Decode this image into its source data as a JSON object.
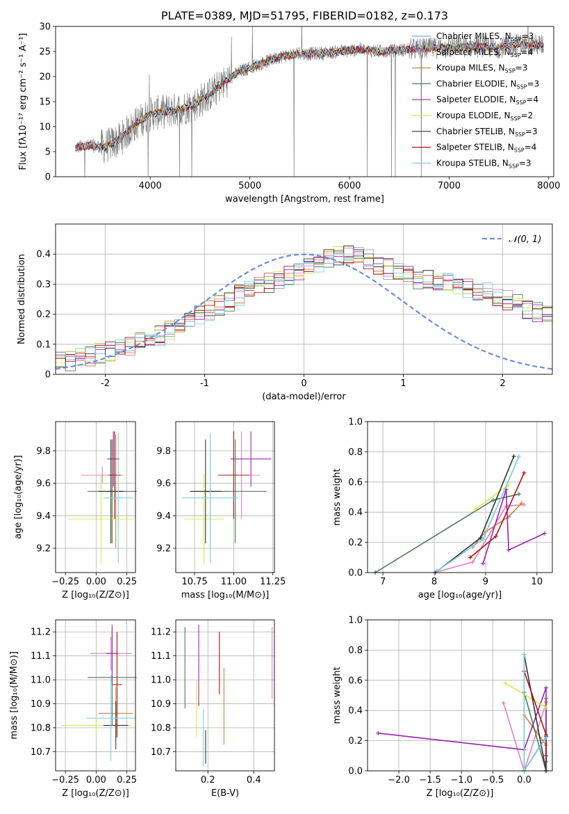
{
  "chart_data": [
    {
      "type": "line",
      "title": "PLATE=0389, MJD=51795, FIBERID=0182, z=0.173",
      "xlabel": "wavelength [Angstrom, rest frame]",
      "ylabel": "Flux [fλ10⁻¹⁷ erg cm⁻² s⁻¹ A⁻¹]",
      "xlim": [
        3050,
        8050
      ],
      "ylim": [
        0,
        30
      ],
      "xticks": [
        4000,
        5000,
        6000,
        7000,
        8000
      ],
      "yticks": [
        0,
        5,
        10,
        15,
        20,
        25,
        30
      ],
      "grid": false,
      "legend_position": "top-right",
      "legend": [
        {
          "label": "Chabrier MILES, N",
          "sub": "SSP",
          "suffix": "=3",
          "color": "#77aadd"
        },
        {
          "label": "Salpeter MILES, N",
          "sub": "SSP",
          "suffix": "=4",
          "color": "#e07fc0"
        },
        {
          "label": "Kroupa MILES, N",
          "sub": "SSP",
          "suffix": "=3",
          "color": "#d08040"
        },
        {
          "label": "Chabrier ELODIE, N",
          "sub": "SSP",
          "suffix": "=3",
          "color": "#4a7a55"
        },
        {
          "label": "Salpeter ELODIE, N",
          "sub": "SSP",
          "suffix": "=4",
          "color": "#9a22b0"
        },
        {
          "label": "Kroupa ELODIE, N",
          "sub": "SSP",
          "suffix": "=2",
          "color": "#d8e84a"
        },
        {
          "label": "Chabrier STELIB, N",
          "sub": "SSP",
          "suffix": "=3",
          "color": "#333333"
        },
        {
          "label": "Salpeter STELIB, N",
          "sub": "SSP",
          "suffix": "=4",
          "color": "#b21010"
        },
        {
          "label": "Kroupa STELIB, N",
          "sub": "SSP",
          "suffix": "=3",
          "color": "#7fd0e0"
        }
      ],
      "spectrum_color": "#808080",
      "model_trend": {
        "x": [
          3250,
          3400,
          3550,
          3700,
          3850,
          4000,
          4150,
          4300,
          4450,
          4600,
          4750,
          4900,
          5100,
          5300,
          5500,
          5700,
          5900,
          6100,
          6300,
          6500,
          6700,
          6900,
          7100,
          7300,
          7500,
          7700,
          7900
        ],
        "y": [
          5.8,
          6.2,
          6.0,
          7.5,
          10.5,
          12.5,
          13.0,
          13.5,
          14.5,
          16.5,
          19.0,
          21.0,
          22.5,
          24.0,
          24.5,
          24.6,
          25.0,
          25.4,
          25.0,
          25.3,
          25.5,
          25.7,
          26.0,
          26.0,
          25.8,
          26.5,
          26.3
        ]
      }
    },
    {
      "type": "histogram",
      "xlabel": "(data-model)/error",
      "ylabel": "Normed distribution",
      "xlim": [
        -2.5,
        2.5
      ],
      "ylim": [
        0,
        0.5
      ],
      "xticks": [
        -2,
        -1,
        0,
        1,
        2
      ],
      "yticks": [
        0.0,
        0.1,
        0.2,
        0.3,
        0.4
      ],
      "grid": true,
      "legend_position": "top-right",
      "legend_label": "𝒩(0, 1)",
      "gaussian_color": "#6a8fd8",
      "bin_width": 0.1,
      "bin_start": -2.5,
      "base_values": [
        0.04,
        0.045,
        0.055,
        0.06,
        0.07,
        0.078,
        0.088,
        0.095,
        0.105,
        0.115,
        0.13,
        0.145,
        0.16,
        0.18,
        0.195,
        0.21,
        0.228,
        0.245,
        0.262,
        0.278,
        0.292,
        0.305,
        0.318,
        0.33,
        0.342,
        0.355,
        0.37,
        0.385,
        0.395,
        0.4,
        0.39,
        0.38,
        0.365,
        0.35,
        0.338,
        0.325,
        0.318,
        0.312,
        0.308,
        0.302,
        0.295,
        0.288,
        0.28,
        0.27,
        0.258,
        0.245,
        0.232,
        0.218,
        0.205,
        0.192
      ],
      "series_colors": [
        "#77aadd",
        "#e07fc0",
        "#d08040",
        "#4a7a55",
        "#9a22b0",
        "#d8e84a",
        "#333333",
        "#b21010",
        "#7fd0e0"
      ]
    },
    {
      "type": "errorbar",
      "xlabel": "Z [log₁₀(Z/Z⊙)]",
      "ylabel": "age  [log₁₀(age/yr)]",
      "xlim": [
        -0.33,
        0.32
      ],
      "ylim": [
        9.05,
        9.98
      ],
      "xticks": [
        -0.25,
        0.0,
        0.25
      ],
      "xtick_labels": [
        "−0.25",
        "0.00",
        "0.25"
      ],
      "yticks": [
        9.2,
        9.4,
        9.6,
        9.8
      ],
      "ytick_labels": [
        "9.2",
        "9.4",
        "9.6",
        "9.8"
      ],
      "grid": true,
      "points": [
        {
          "x": 0.05,
          "xerr": 0.17,
          "y": 9.65,
          "yerr": 0.05,
          "color": "#e07fc0"
        },
        {
          "x": 0.16,
          "xerr": 0.08,
          "y": 9.55,
          "yerr": 0.35,
          "color": "#d08040"
        },
        {
          "x": 0.13,
          "xerr": 0.2,
          "y": 9.55,
          "yerr": 0.32,
          "color": "#4a7a55"
        },
        {
          "x": 0.14,
          "xerr": 0.05,
          "y": 9.75,
          "yerr": 0.17,
          "color": "#9a22b0"
        },
        {
          "x": 0.04,
          "xerr": 0.27,
          "y": 9.38,
          "yerr": 0.28,
          "color": "#d8e84a"
        },
        {
          "x": 0.12,
          "xerr": 0.1,
          "y": 9.55,
          "yerr": 0.32,
          "color": "#333333"
        },
        {
          "x": 0.15,
          "xerr": 0.05,
          "y": 9.65,
          "yerr": 0.27,
          "color": "#b21010"
        },
        {
          "x": 0.18,
          "xerr": 0.12,
          "y": 9.51,
          "yerr": 0.4,
          "color": "#7fd0e0"
        }
      ]
    },
    {
      "type": "errorbar",
      "xlabel": "mass [log₁₀(M/M⊙)]",
      "ylabel": "",
      "xlim": [
        10.63,
        11.26
      ],
      "ylim": [
        9.05,
        9.98
      ],
      "xticks": [
        10.75,
        11.0,
        11.25
      ],
      "xtick_labels": [
        "10.75",
        "11.00",
        "11.25"
      ],
      "yticks": [
        9.2,
        9.4,
        9.6,
        9.8
      ],
      "ytick_labels": [
        "9.2",
        "9.4",
        "9.6",
        "9.8"
      ],
      "grid": true,
      "points": [
        {
          "x": 11.05,
          "xerr": 0.12,
          "y": 9.65,
          "yerr": 0.27,
          "color": "#e07fc0"
        },
        {
          "x": 10.85,
          "xerr": 0.12,
          "y": 9.55,
          "yerr": 0.35,
          "color": "#d08040"
        },
        {
          "x": 11.01,
          "xerr": 0.2,
          "y": 9.55,
          "yerr": 0.32,
          "color": "#4a7a55"
        },
        {
          "x": 11.11,
          "xerr": 0.13,
          "y": 9.75,
          "yerr": 0.17,
          "color": "#9a22b0"
        },
        {
          "x": 10.81,
          "xerr": 0.13,
          "y": 9.38,
          "yerr": 0.28,
          "color": "#d8e84a"
        },
        {
          "x": 10.82,
          "xerr": 0.1,
          "y": 9.55,
          "yerr": 0.32,
          "color": "#333333"
        },
        {
          "x": 11.0,
          "xerr": 0.1,
          "y": 9.65,
          "yerr": 0.27,
          "color": "#b21010"
        },
        {
          "x": 10.85,
          "xerr": 0.18,
          "y": 9.51,
          "yerr": 0.4,
          "color": "#7fd0e0"
        }
      ]
    },
    {
      "type": "line",
      "xlabel": "age  [log₁₀(age/yr)]",
      "ylabel": "mass weight",
      "xlim": [
        6.7,
        10.3
      ],
      "ylim": [
        0,
        1.0
      ],
      "xticks": [
        7,
        8,
        9,
        10
      ],
      "xtick_labels": [
        "7",
        "8",
        "9",
        "10"
      ],
      "yticks": [
        0.0,
        0.2,
        0.4,
        0.6,
        0.8,
        1.0
      ],
      "ytick_labels": [
        "0.0",
        "0.2",
        "0.4",
        "0.6",
        "0.8",
        "1.0"
      ],
      "grid": true,
      "series": [
        {
          "color": "#77aadd",
          "x": [
            8.05,
            8.95,
            9.65
          ],
          "y": [
            0.01,
            0.22,
            0.77
          ]
        },
        {
          "color": "#e07fc0",
          "x": [
            8.0,
            8.75,
            9.4,
            9.75
          ],
          "y": [
            0.0,
            0.07,
            0.44,
            0.45
          ]
        },
        {
          "color": "#d08040",
          "x": [
            8.75,
            9.0,
            9.45,
            9.7
          ],
          "y": [
            0.17,
            0.27,
            0.37,
            0.46
          ]
        },
        {
          "color": "#4a7a55",
          "x": [
            6.85,
            9.15,
            9.65
          ],
          "y": [
            0.0,
            0.48,
            0.52
          ]
        },
        {
          "color": "#9a22b0",
          "x": [
            8.95,
            9.4,
            9.45,
            10.15
          ],
          "y": [
            0.06,
            0.55,
            0.15,
            0.26
          ]
        },
        {
          "color": "#d8e84a",
          "x": [
            8.8,
            9.45
          ],
          "y": [
            0.42,
            0.58
          ]
        },
        {
          "color": "#333333",
          "x": [
            8.02,
            8.9,
            9.55
          ],
          "y": [
            0.0,
            0.23,
            0.77
          ]
        },
        {
          "color": "#b21010",
          "x": [
            8.7,
            9.2,
            9.75
          ],
          "y": [
            0.1,
            0.24,
            0.66
          ]
        },
        {
          "color": "#7fd0e0",
          "x": [
            8.05,
            8.95,
            9.65
          ],
          "y": [
            0.01,
            0.22,
            0.77
          ]
        }
      ]
    },
    {
      "type": "errorbar",
      "xlabel": "Z [log₁₀(Z/Z⊙)]",
      "ylabel": "mass [log₁₀(M/M⊙)]",
      "xlim": [
        -0.33,
        0.32
      ],
      "ylim": [
        10.62,
        11.25
      ],
      "xticks": [
        -0.25,
        0.0,
        0.25
      ],
      "xtick_labels": [
        "−0.25",
        "0.00",
        "0.25"
      ],
      "yticks": [
        10.7,
        10.8,
        10.9,
        11.0,
        11.1,
        11.2
      ],
      "ytick_labels": [
        "10.7",
        "10.8",
        "10.9",
        "11.0",
        "11.1",
        "11.2"
      ],
      "grid": true,
      "points": [
        {
          "x": 0.12,
          "xerr": 0.17,
          "y": 11.11,
          "yerr": 0.07,
          "color": "#e07fc0"
        },
        {
          "x": 0.16,
          "xerr": 0.14,
          "y": 10.86,
          "yerr": 0.11,
          "color": "#d08040"
        },
        {
          "x": 0.13,
          "xerr": 0.2,
          "y": 11.01,
          "yerr": 0.2,
          "color": "#4a7a55"
        },
        {
          "x": 0.13,
          "xerr": 0.05,
          "y": 11.11,
          "yerr": 0.12,
          "color": "#9a22b0"
        },
        {
          "x": 0.0,
          "xerr": 0.28,
          "y": 10.81,
          "yerr": 0.04,
          "color": "#d8e84a"
        },
        {
          "x": 0.16,
          "xerr": 0.1,
          "y": 10.81,
          "yerr": 0.1,
          "color": "#333333"
        },
        {
          "x": 0.17,
          "xerr": 0.04,
          "y": 10.98,
          "yerr": 0.22,
          "color": "#b21010"
        },
        {
          "x": 0.12,
          "xerr": 0.2,
          "y": 10.84,
          "yerr": 0.18,
          "color": "#7fd0e0"
        }
      ]
    },
    {
      "type": "errorbar",
      "xlabel": "E(B-V)",
      "ylabel": "",
      "xlim": [
        0.06,
        0.49
      ],
      "ylim": [
        10.62,
        11.25
      ],
      "xticks": [
        0.2,
        0.4
      ],
      "xtick_labels": [
        "0.2",
        "0.4"
      ],
      "yticks": [
        10.7,
        10.8,
        10.9,
        11.0,
        11.1,
        11.2
      ],
      "ytick_labels": [
        "10.7",
        "10.8",
        "10.9",
        "11.0",
        "11.1",
        "11.2"
      ],
      "grid": true,
      "points": [
        {
          "x": 0.48,
          "xerr": 0,
          "y": 11.07,
          "yerr": 0.15,
          "color": "#e07fc0"
        },
        {
          "x": 0.27,
          "xerr": 0,
          "y": 10.89,
          "yerr": 0.16,
          "color": "#d08040"
        },
        {
          "x": 0.1,
          "xerr": 0,
          "y": 11.05,
          "yerr": 0.17,
          "color": "#4a7a55"
        },
        {
          "x": 0.16,
          "xerr": 0,
          "y": 11.06,
          "yerr": 0.17,
          "color": "#9a22b0"
        },
        {
          "x": 0.15,
          "xerr": 0,
          "y": 10.88,
          "yerr": 0.12,
          "color": "#d8e84a"
        },
        {
          "x": 0.19,
          "xerr": 0,
          "y": 10.72,
          "yerr": 0.07,
          "color": "#333333"
        },
        {
          "x": 0.25,
          "xerr": 0,
          "y": 11.07,
          "yerr": 0.13,
          "color": "#b21010"
        },
        {
          "x": 0.18,
          "xerr": 0,
          "y": 10.76,
          "yerr": 0.12,
          "color": "#7fd0e0"
        }
      ]
    },
    {
      "type": "line",
      "xlabel": "Z [log₁₀(Z/Z⊙)]",
      "ylabel": "mass weight",
      "xlim": [
        -2.5,
        0.45
      ],
      "ylim": [
        0,
        1.0
      ],
      "xticks": [
        -2.0,
        -1.5,
        -1.0,
        -0.5,
        0.0
      ],
      "xtick_labels": [
        "−2.0",
        "−1.5",
        "−1.0",
        "−0.5",
        "0.0"
      ],
      "yticks": [
        0.0,
        0.2,
        0.4,
        0.6,
        0.8,
        1.0
      ],
      "ytick_labels": [
        "0.0",
        "0.2",
        "0.4",
        "0.6",
        "0.8",
        "1.0"
      ],
      "grid": true,
      "series": [
        {
          "color": "#77aadd",
          "x": [
            0.0,
            0.0,
            0.35
          ],
          "y": [
            0.77,
            0.0,
            0.23
          ]
        },
        {
          "color": "#e07fc0",
          "x": [
            -0.33,
            0.0,
            0.35
          ],
          "y": [
            0.45,
            0.0,
            0.45
          ]
        },
        {
          "color": "#d08040",
          "x": [
            0.0,
            0.35,
            0.35
          ],
          "y": [
            0.37,
            0.17,
            0.46
          ]
        },
        {
          "color": "#4a7a55",
          "x": [
            0.0,
            0.35,
            0.35
          ],
          "y": [
            0.52,
            0.0,
            0.48
          ]
        },
        {
          "color": "#9a22b0",
          "x": [
            -2.33,
            0.0,
            0.35,
            0.35
          ],
          "y": [
            0.25,
            0.14,
            0.55,
            0.06
          ]
        },
        {
          "color": "#d8e84a",
          "x": [
            -0.3,
            0.35
          ],
          "y": [
            0.58,
            0.42
          ]
        },
        {
          "color": "#333333",
          "x": [
            0.0,
            0.35,
            0.35
          ],
          "y": [
            0.77,
            0.0,
            0.23
          ]
        },
        {
          "color": "#b21010",
          "x": [
            0.0,
            0.35,
            0.35
          ],
          "y": [
            0.66,
            0.24,
            0.1
          ]
        },
        {
          "color": "#7fd0e0",
          "x": [
            0.0,
            0.0,
            0.35
          ],
          "y": [
            0.77,
            0.0,
            0.22
          ]
        }
      ]
    }
  ]
}
